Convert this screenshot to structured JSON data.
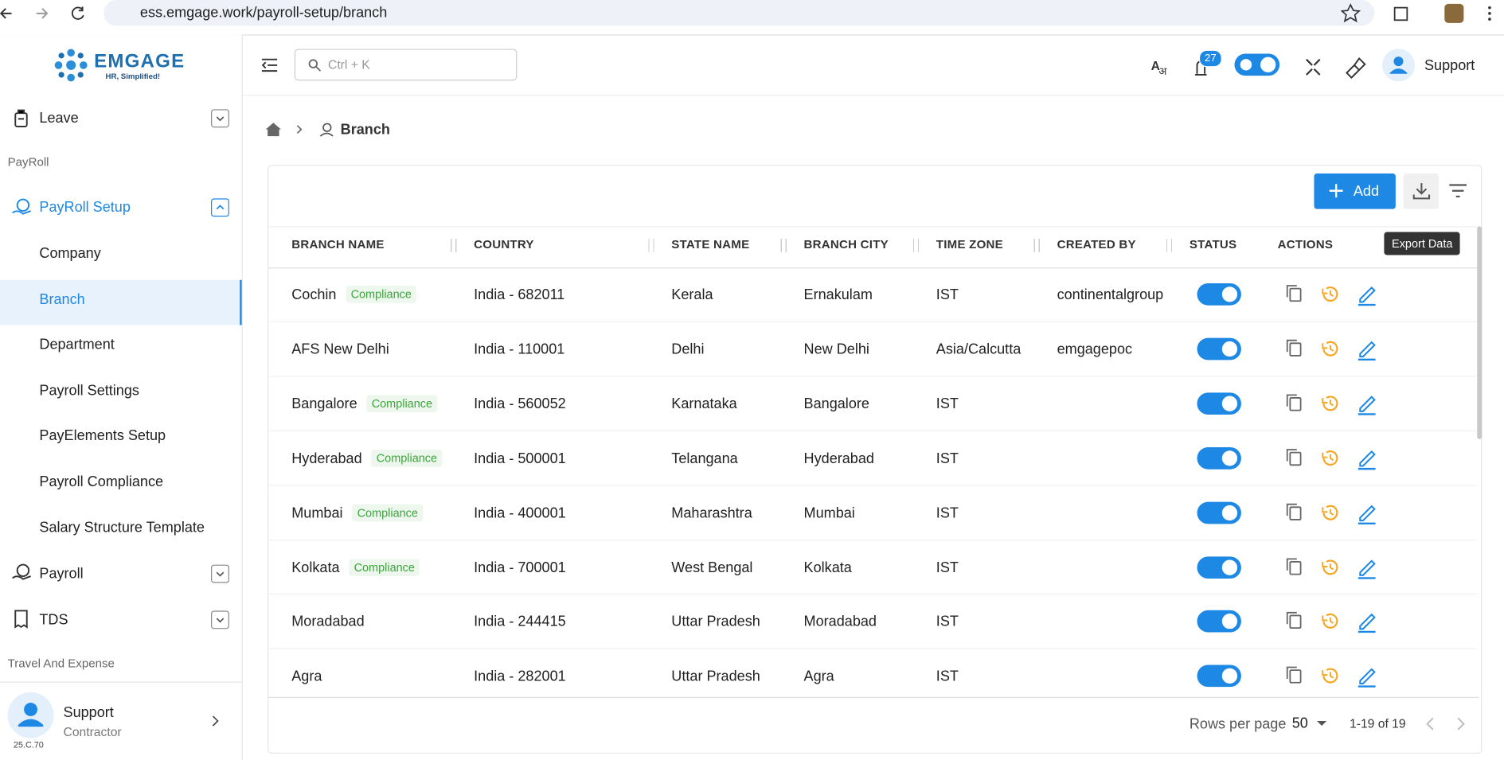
{
  "browser": {
    "url": "ess.emgage.work/payroll-setup/branch"
  },
  "logo": {
    "name": "EMGAGE",
    "tagline": "HR, Simplified!"
  },
  "sidebar": {
    "leave": "Leave",
    "section_payroll": "PayRoll",
    "active_group": "PayRoll Setup",
    "sub_items": [
      "Company",
      "Branch",
      "Department",
      "Payroll Settings",
      "PayElements Setup",
      "Payroll Compliance",
      "Salary Structure Template"
    ],
    "items_after": [
      "Payroll",
      "TDS"
    ],
    "section_travel": "Travel And Expense",
    "user": {
      "name": "Support",
      "role": "Contractor",
      "version": "25.C.70"
    }
  },
  "header": {
    "search_placeholder": "Ctrl + K",
    "notification_count": 27,
    "user": "Support"
  },
  "breadcrumb": {
    "current": "Branch"
  },
  "toolbar": {
    "add": "Add",
    "tooltip": "Export Data"
  },
  "table": {
    "columns": [
      "BRANCH NAME",
      "COUNTRY",
      "STATE NAME",
      "BRANCH CITY",
      "TIME ZONE",
      "CREATED BY",
      "STATUS",
      "ACTIONS"
    ],
    "rows": [
      {
        "name": "Cochin",
        "tag": "Compliance",
        "country": "India - 682011",
        "state": "Kerala",
        "city": "Ernakulam",
        "time_zone": "IST",
        "created_by": "continentalgroup"
      },
      {
        "name": "AFS New Delhi",
        "tag": null,
        "country": "India - 110001",
        "state": "Delhi",
        "city": "New Delhi",
        "time_zone": "Asia/Calcutta",
        "created_by": "emgagepoc"
      },
      {
        "name": "Bangalore",
        "tag": "Compliance",
        "country": "India - 560052",
        "state": "Karnataka",
        "city": "Bangalore",
        "time_zone": "IST",
        "created_by": null
      },
      {
        "name": "Hyderabad",
        "tag": "Compliance",
        "country": "India - 500001",
        "state": "Telangana",
        "city": "Hyderabad",
        "time_zone": "IST",
        "created_by": null
      },
      {
        "name": "Mumbai",
        "tag": "Compliance",
        "country": "India - 400001",
        "state": "Maharashtra",
        "city": "Mumbai",
        "time_zone": "IST",
        "created_by": null
      },
      {
        "name": "Kolkata",
        "tag": "Compliance",
        "country": "India - 700001",
        "state": "West Bengal",
        "city": "Kolkata",
        "time_zone": "IST",
        "created_by": null
      },
      {
        "name": "Moradabad",
        "tag": null,
        "country": "India - 244415",
        "state": "Uttar Pradesh",
        "city": "Moradabad",
        "time_zone": "IST",
        "created_by": null
      },
      {
        "name": "Agra",
        "tag": null,
        "country": "India - 282001",
        "state": "Uttar Pradesh",
        "city": "Agra",
        "time_zone": "IST",
        "created_by": null
      }
    ]
  },
  "pagination": {
    "rows_per_page_label": "Rows per page",
    "rows_per_page": 50,
    "range": "1-19 of 19"
  }
}
